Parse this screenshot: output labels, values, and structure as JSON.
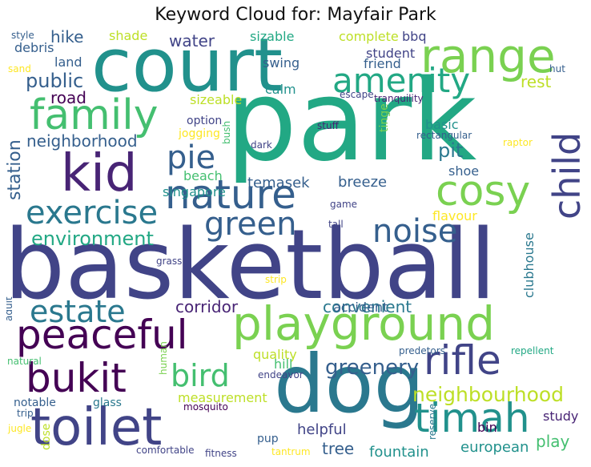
{
  "title": "Keyword Cloud for: Mayfair Park",
  "palette": [
    "#440154",
    "#482475",
    "#414487",
    "#355f8d",
    "#2a788e",
    "#21918c",
    "#22a884",
    "#44bf70",
    "#7ad151",
    "#bddf26",
    "#fde725"
  ],
  "words": [
    {
      "text": "park",
      "color": "#22a884"
    },
    {
      "text": "basketball",
      "color": "#414487"
    },
    {
      "text": "court",
      "color": "#21918c"
    },
    {
      "text": "dog",
      "color": "#2a788e"
    },
    {
      "text": "playground",
      "color": "#7ad151"
    },
    {
      "text": "toilet",
      "color": "#414487"
    },
    {
      "text": "kid",
      "color": "#482475"
    },
    {
      "text": "nature",
      "color": "#355f8d"
    },
    {
      "text": "family",
      "color": "#44bf70"
    },
    {
      "text": "range",
      "color": "#7ad151"
    },
    {
      "text": "peaceful",
      "color": "#440154"
    },
    {
      "text": "rifle",
      "color": "#414487"
    },
    {
      "text": "cosy",
      "color": "#7ad151"
    },
    {
      "text": "timah",
      "color": "#21918c"
    },
    {
      "text": "bukit",
      "color": "#440154"
    },
    {
      "text": "amenity",
      "color": "#22a884"
    },
    {
      "text": "child",
      "color": "#414487"
    },
    {
      "text": "exercise",
      "color": "#2a788e"
    },
    {
      "text": "green",
      "color": "#355f8d"
    },
    {
      "text": "noise",
      "color": "#355f8d"
    },
    {
      "text": "estate",
      "color": "#2a788e"
    },
    {
      "text": "bird",
      "color": "#44bf70"
    },
    {
      "text": "pie",
      "color": "#355f8d"
    },
    {
      "text": "neighbourhood",
      "color": "#bddf26"
    },
    {
      "text": "greenery",
      "color": "#355f8d"
    },
    {
      "text": "environment",
      "color": "#22a884"
    },
    {
      "text": "public",
      "color": "#355f8d"
    },
    {
      "text": "station",
      "color": "#355f8d"
    },
    {
      "text": "neighborhood",
      "color": "#355f8d"
    },
    {
      "text": "corridor",
      "color": "#482475"
    },
    {
      "text": "convenient",
      "color": "#2a788e"
    },
    {
      "text": "pit",
      "color": "#2a788e"
    },
    {
      "text": "water",
      "color": "#414487"
    },
    {
      "text": "hike",
      "color": "#355f8d"
    },
    {
      "text": "rest",
      "color": "#bddf26"
    },
    {
      "text": "road",
      "color": "#440154"
    },
    {
      "text": "play",
      "color": "#44bf70"
    },
    {
      "text": "tree",
      "color": "#355f8d"
    },
    {
      "text": "fountain",
      "color": "#21918c"
    },
    {
      "text": "european",
      "color": "#21918c"
    },
    {
      "text": "study",
      "color": "#482475"
    },
    {
      "text": "bin",
      "color": "#440154"
    },
    {
      "text": "helpful",
      "color": "#414487"
    },
    {
      "text": "measurement",
      "color": "#bddf26"
    },
    {
      "text": "clubhouse",
      "color": "#2a788e"
    },
    {
      "text": "temasek",
      "color": "#355f8d"
    },
    {
      "text": "singapore",
      "color": "#21918c"
    },
    {
      "text": "beach",
      "color": "#44bf70"
    },
    {
      "text": "breeze",
      "color": "#355f8d"
    },
    {
      "text": "shoe",
      "color": "#355f8d"
    },
    {
      "text": "basic",
      "color": "#21918c"
    },
    {
      "text": "swing",
      "color": "#355f8d"
    },
    {
      "text": "calm",
      "color": "#21918c"
    },
    {
      "text": "student",
      "color": "#414487"
    },
    {
      "text": "friend",
      "color": "#355f8d"
    },
    {
      "text": "complete",
      "color": "#bddf26"
    },
    {
      "text": "bbq",
      "color": "#414487"
    },
    {
      "text": "sizable",
      "color": "#22a884"
    },
    {
      "text": "shade",
      "color": "#bddf26"
    },
    {
      "text": "land",
      "color": "#355f8d"
    },
    {
      "text": "debris",
      "color": "#355f8d"
    },
    {
      "text": "sizeable",
      "color": "#bddf26"
    },
    {
      "text": "accident",
      "color": "#355f8d"
    },
    {
      "text": "quality",
      "color": "#bddf26"
    },
    {
      "text": "hill",
      "color": "#44bf70"
    },
    {
      "text": "flavour",
      "color": "#fde725"
    },
    {
      "text": "tinge",
      "color": "#7ad151"
    },
    {
      "text": "jogging",
      "color": "#fde725"
    },
    {
      "text": "option",
      "color": "#414487"
    },
    {
      "text": "bush",
      "color": "#44bf70"
    },
    {
      "text": "stuff",
      "color": "#482475"
    },
    {
      "text": "dark",
      "color": "#414487"
    },
    {
      "text": "escape",
      "color": "#414487"
    },
    {
      "text": "tranquility",
      "color": "#482475"
    },
    {
      "text": "rectangular",
      "color": "#355f8d"
    },
    {
      "text": "game",
      "color": "#414487"
    },
    {
      "text": "tall",
      "color": "#414487"
    },
    {
      "text": "raptor",
      "color": "#fde725"
    },
    {
      "text": "hut",
      "color": "#355f8d"
    },
    {
      "text": "style",
      "color": "#355f8d"
    },
    {
      "text": "sand",
      "color": "#fde725"
    },
    {
      "text": "grass",
      "color": "#414487"
    },
    {
      "text": "strip",
      "color": "#fde725"
    },
    {
      "text": "adult",
      "color": "#355f8d"
    },
    {
      "text": "natural",
      "color": "#44bf70"
    },
    {
      "text": "human",
      "color": "#7ad151"
    },
    {
      "text": "endeavor",
      "color": "#414487"
    },
    {
      "text": "predetors",
      "color": "#355f8d"
    },
    {
      "text": "repellent",
      "color": "#22a884"
    },
    {
      "text": "reserve",
      "color": "#2a788e"
    },
    {
      "text": "notable",
      "color": "#355f8d"
    },
    {
      "text": "glass",
      "color": "#2a788e"
    },
    {
      "text": "mosquito",
      "color": "#440154"
    },
    {
      "text": "trip",
      "color": "#355f8d"
    },
    {
      "text": "jugle",
      "color": "#fde725"
    },
    {
      "text": "dose",
      "color": "#bddf26"
    },
    {
      "text": "pup",
      "color": "#355f8d"
    },
    {
      "text": "comfortable",
      "color": "#414487"
    },
    {
      "text": "fitness",
      "color": "#414487"
    },
    {
      "text": "tantrum",
      "color": "#fde725"
    }
  ]
}
